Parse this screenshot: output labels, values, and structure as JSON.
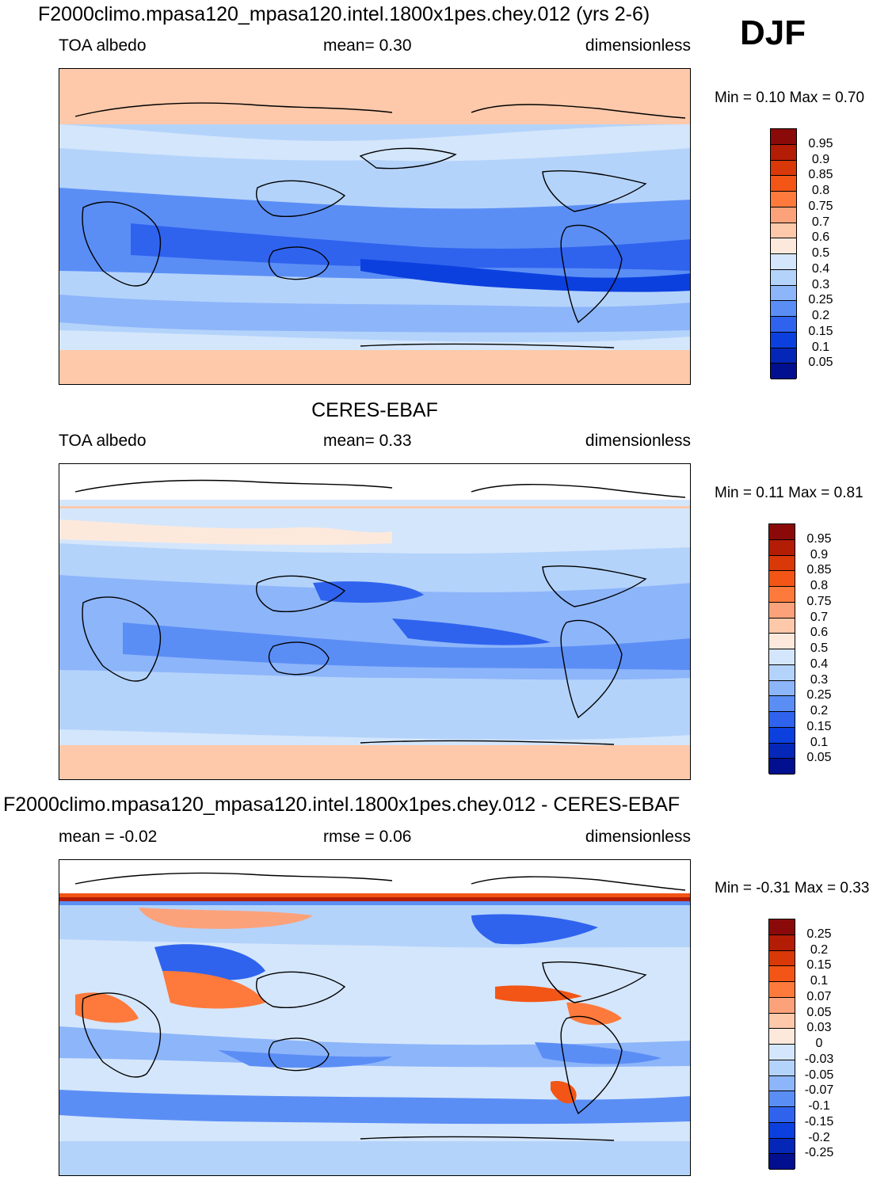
{
  "season": "DJF",
  "panels": [
    {
      "id": "model",
      "title": "F2000climo.mpasa120_mpasa120.intel.1800x1pes.chey.012 (yrs 2-6)",
      "left_label": "TOA albedo",
      "center_label": "mean=   0.30",
      "units": "dimensionless",
      "minmax": "Min =   0.10 Max =   0.70",
      "scale": "albedo"
    },
    {
      "id": "obs",
      "title": "CERES-EBAF",
      "left_label": "TOA albedo",
      "center_label": "mean=   0.33",
      "units": "dimensionless",
      "minmax": "Min =   0.11 Max =   0.81",
      "scale": "albedo"
    },
    {
      "id": "diff",
      "title": "F2000climo.mpasa120_mpasa120.intel.1800x1pes.chey.012 - CERES-EBAF",
      "left_label": "mean =  -0.02",
      "center_label": "rmse =   0.06",
      "units": "dimensionless",
      "minmax": "Min =  -0.31 Max =   0.33",
      "scale": "diff"
    }
  ],
  "colorbars": {
    "albedo": {
      "labels": [
        "0.95",
        "0.9",
        "0.85",
        "0.8",
        "0.75",
        "0.7",
        "0.6",
        "0.5",
        "0.4",
        "0.3",
        "0.25",
        "0.2",
        "0.15",
        "0.1",
        "0.05"
      ],
      "colors": [
        "#8a0a0a",
        "#b31c05",
        "#d93808",
        "#f25515",
        "#fd7a3c",
        "#fca27b",
        "#fdc9aa",
        "#fde9dc",
        "#d4e6fb",
        "#b4d3fb",
        "#8db5fa",
        "#5b8ef5",
        "#2f63ee",
        "#0c40de",
        "#0527b8",
        "#020f8e"
      ]
    },
    "diff": {
      "labels": [
        "0.25",
        "0.2",
        "0.15",
        "0.1",
        "0.07",
        "0.05",
        "0.03",
        "0",
        "-0.03",
        "-0.05",
        "-0.07",
        "-0.1",
        "-0.15",
        "-0.2",
        "-0.25"
      ],
      "colors": [
        "#8a0a0a",
        "#b31c05",
        "#d93808",
        "#f25515",
        "#fd7a3c",
        "#fca27b",
        "#fdc9aa",
        "#fde9dc",
        "#d4e6fb",
        "#b4d3fb",
        "#8db5fa",
        "#5b8ef5",
        "#2f63ee",
        "#0c40de",
        "#0527b8",
        "#020f8e"
      ]
    }
  }
}
